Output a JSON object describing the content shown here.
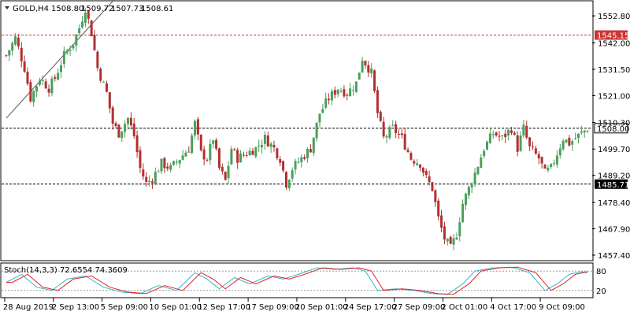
{
  "header": {
    "symbol": "GOLD,H4",
    "open": "1508.80",
    "high": "1509.72",
    "low": "1507.73",
    "close": "1508.61"
  },
  "oscillator": {
    "label": "Stoch(14,3,3) 72.6554 74.3609",
    "levels": [
      "80",
      "20"
    ]
  },
  "colors": {
    "bull": "#4a9f5a",
    "bear": "#b03030",
    "resistance": "#cc3333",
    "support": "#000000",
    "stoch_main": "#35b4c8",
    "stoch_signal": "#dd2222"
  },
  "chart_data": {
    "type": "candlestick",
    "timeframe": "H4",
    "ylim": [
      1455.5,
      1558.5
    ],
    "price_ticks": [
      "1552.80",
      "1542.00",
      "1531.50",
      "1521.00",
      "1510.30",
      "1499.70",
      "1489.20",
      "1478.40",
      "1467.90",
      "1457.40"
    ],
    "x_ticks": [
      "28 Aug 2019",
      "2 Sep 13:00",
      "5 Sep 09:00",
      "10 Sep 01:00",
      "12 Sep 17:00",
      "17 Sep 09:00",
      "20 Sep 01:00",
      "24 Sep 17:00",
      "27 Sep 09:00",
      "2 Oct 01:00",
      "4 Oct 17:00",
      "9 Oct 09:00"
    ],
    "horizontal_lines": [
      {
        "price": 1545.15,
        "label": "1545.15",
        "style": "dashed",
        "role": "resistance"
      },
      {
        "price": 1508.0,
        "label": "1508.00",
        "style": "dashed",
        "role": "current"
      },
      {
        "price": 1485.71,
        "label": "1485.71",
        "style": "dashed",
        "role": "support"
      }
    ],
    "trendline": {
      "from": [
        0,
        1512.0
      ],
      "to": [
        36,
        1560.0
      ]
    },
    "close_path": [
      [
        0,
        1537
      ],
      [
        3,
        1544
      ],
      [
        6,
        1532
      ],
      [
        8,
        1520
      ],
      [
        11,
        1528
      ],
      [
        14,
        1524
      ],
      [
        16,
        1528
      ],
      [
        19,
        1537
      ],
      [
        22,
        1542
      ],
      [
        24,
        1548
      ],
      [
        26,
        1556
      ],
      [
        28,
        1546
      ],
      [
        30,
        1532
      ],
      [
        33,
        1522
      ],
      [
        35,
        1510
      ],
      [
        37,
        1506
      ],
      [
        40,
        1512
      ],
      [
        42,
        1505
      ],
      [
        44,
        1492
      ],
      [
        46,
        1486
      ],
      [
        48,
        1488
      ],
      [
        51,
        1494
      ],
      [
        54,
        1492
      ],
      [
        57,
        1496
      ],
      [
        60,
        1500
      ],
      [
        62,
        1510
      ],
      [
        64,
        1498
      ],
      [
        66,
        1496
      ],
      [
        68,
        1504
      ],
      [
        70,
        1492
      ],
      [
        72,
        1487
      ],
      [
        74,
        1500
      ],
      [
        76,
        1496
      ],
      [
        79,
        1498
      ],
      [
        82,
        1500
      ],
      [
        85,
        1504
      ],
      [
        88,
        1500
      ],
      [
        90,
        1496
      ],
      [
        92,
        1486
      ],
      [
        94,
        1492
      ],
      [
        97,
        1496
      ],
      [
        100,
        1500
      ],
      [
        103,
        1514
      ],
      [
        106,
        1520
      ],
      [
        109,
        1524
      ],
      [
        112,
        1522
      ],
      [
        115,
        1526
      ],
      [
        117,
        1536
      ],
      [
        120,
        1530
      ],
      [
        122,
        1514
      ],
      [
        124,
        1504
      ],
      [
        127,
        1508
      ],
      [
        130,
        1504
      ],
      [
        133,
        1496
      ],
      [
        136,
        1494
      ],
      [
        138,
        1488
      ],
      [
        140,
        1484
      ],
      [
        142,
        1472
      ],
      [
        144,
        1464
      ],
      [
        146,
        1460
      ],
      [
        148,
        1466
      ],
      [
        150,
        1478
      ],
      [
        152,
        1484
      ],
      [
        154,
        1490
      ],
      [
        157,
        1500
      ],
      [
        160,
        1506
      ],
      [
        163,
        1504
      ],
      [
        166,
        1508
      ],
      [
        168,
        1500
      ],
      [
        170,
        1508
      ],
      [
        172,
        1500
      ],
      [
        175,
        1496
      ],
      [
        177,
        1490
      ],
      [
        179,
        1492
      ],
      [
        181,
        1498
      ],
      [
        183,
        1504
      ],
      [
        185,
        1502
      ],
      [
        187,
        1504
      ],
      [
        189,
        1506
      ],
      [
        191,
        1508
      ]
    ],
    "stoch_path": [
      [
        0,
        45
      ],
      [
        5,
        70
      ],
      [
        10,
        30
      ],
      [
        15,
        20
      ],
      [
        20,
        55
      ],
      [
        26,
        65
      ],
      [
        32,
        30
      ],
      [
        38,
        15
      ],
      [
        44,
        10
      ],
      [
        50,
        35
      ],
      [
        56,
        20
      ],
      [
        62,
        75
      ],
      [
        66,
        55
      ],
      [
        70,
        25
      ],
      [
        75,
        60
      ],
      [
        80,
        40
      ],
      [
        86,
        65
      ],
      [
        91,
        55
      ],
      [
        96,
        70
      ],
      [
        102,
        90
      ],
      [
        108,
        85
      ],
      [
        114,
        90
      ],
      [
        118,
        80
      ],
      [
        122,
        20
      ],
      [
        128,
        25
      ],
      [
        134,
        20
      ],
      [
        140,
        10
      ],
      [
        145,
        8
      ],
      [
        150,
        40
      ],
      [
        154,
        80
      ],
      [
        160,
        90
      ],
      [
        166,
        92
      ],
      [
        172,
        75
      ],
      [
        177,
        20
      ],
      [
        181,
        40
      ],
      [
        185,
        70
      ],
      [
        189,
        78
      ],
      [
        191,
        74
      ]
    ]
  }
}
